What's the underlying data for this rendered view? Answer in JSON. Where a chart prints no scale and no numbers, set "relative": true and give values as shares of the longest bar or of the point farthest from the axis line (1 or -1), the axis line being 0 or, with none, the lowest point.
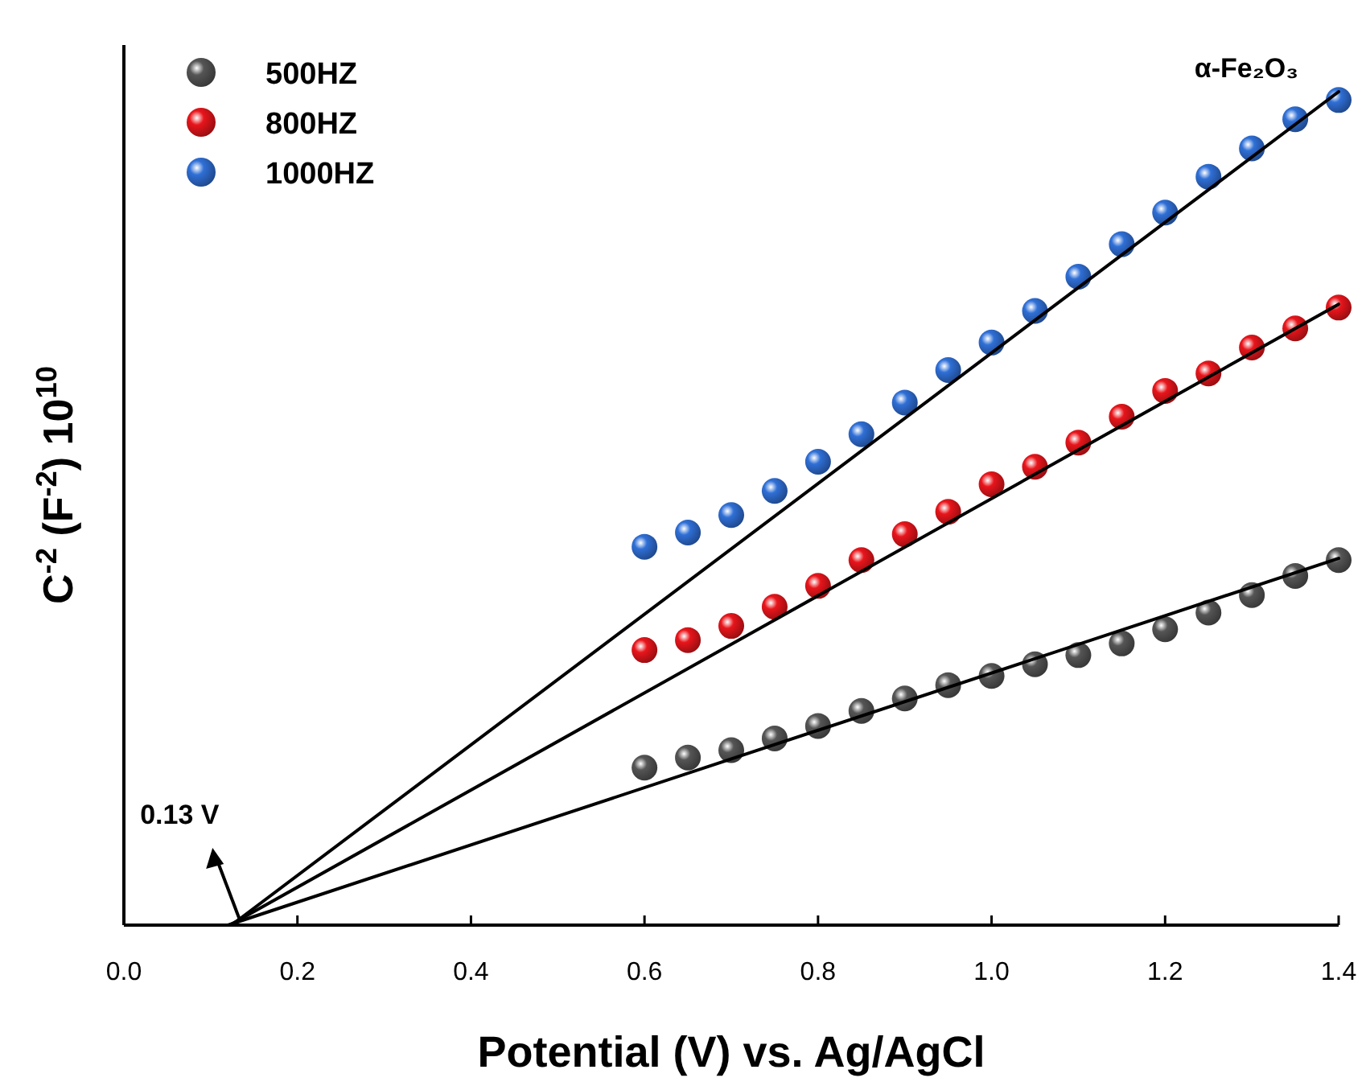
{
  "chart_data": {
    "type": "scatter",
    "relative": true,
    "xlabel": "Potential (V) vs. Ag/AgCl",
    "ylabel": "C$^{-2}$ (F$^{-2}$) 10$^{10}$",
    "xlim": [
      0,
      1.4
    ],
    "xticks": [
      {
        "value": 0,
        "label": "0.0"
      },
      0.2,
      0.4,
      0.6,
      0.8,
      {
        "value": 1,
        "label": "1.0"
      },
      1.2,
      1.4
    ],
    "tick_labels": "x",
    "legend": "top left",
    "marker": "circle",
    "grid": false,
    "annotations": [
      "α-Fe₂O₃",
      {
        "text": "0.13 V",
        "x": 0.13,
        "y": 0
      }
    ],
    "x": [
      0.6,
      0.65,
      0.7,
      0.75,
      0.8,
      0.85,
      0.9,
      0.95,
      1.0,
      1.05,
      1.1,
      1.15,
      1.2,
      1.25,
      1.3,
      1.35,
      1.4
    ],
    "series": [
      {
        "name": "500HZ",
        "color": "#555555",
        "values": [
          0.189,
          0.201,
          0.21,
          0.224,
          0.239,
          0.257,
          0.272,
          0.288,
          0.299,
          0.313,
          0.324,
          0.338,
          0.355,
          0.375,
          0.396,
          0.419,
          0.438
        ]
      },
      {
        "name": "800HZ",
        "color": "#e8151b",
        "values": [
          0.33,
          0.342,
          0.359,
          0.382,
          0.407,
          0.438,
          0.469,
          0.496,
          0.529,
          0.55,
          0.579,
          0.61,
          0.641,
          0.662,
          0.693,
          0.716,
          0.741
        ]
      },
      {
        "name": "1000HZ",
        "color": "#2f6fd6",
        "values": [
          0.454,
          0.471,
          0.492,
          0.521,
          0.556,
          0.589,
          0.627,
          0.666,
          0.699,
          0.737,
          0.778,
          0.817,
          0.855,
          0.898,
          0.932,
          0.967,
          0.99
        ]
      },
      {
        "type": "line",
        "marker": "none",
        "color": "#000000",
        "x": [
          0.12,
          1.4
        ],
        "values": [
          0,
          0.44
        ]
      },
      {
        "type": "line",
        "marker": "none",
        "color": "#000000",
        "x": [
          0.122,
          1.4
        ],
        "values": [
          0,
          0.745
        ]
      },
      {
        "type": "line",
        "marker": "none",
        "color": "#000000",
        "x": [
          0.124,
          1.4
        ],
        "values": [
          0,
          1.0
        ]
      }
    ]
  }
}
